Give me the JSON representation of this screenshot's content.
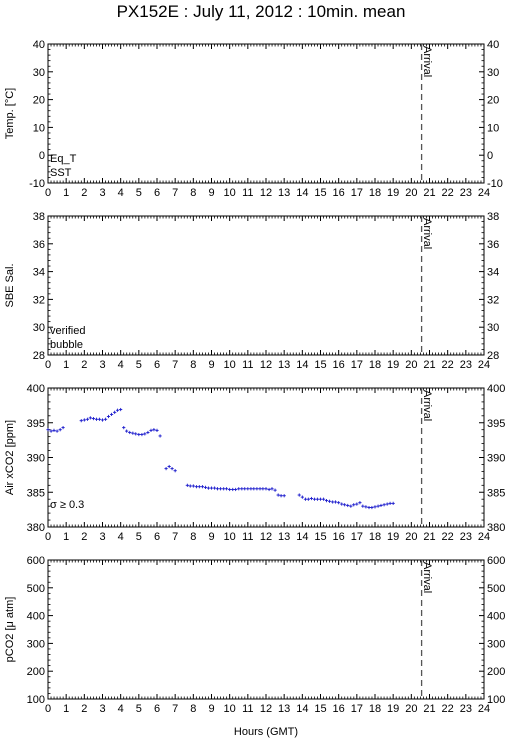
{
  "title": "PX152E : July 11, 2012 : 10min. mean",
  "xlabel": "Hours (GMT)",
  "arrival_label": "Arrival",
  "colors": {
    "axis": "#000000",
    "blue": "#1a1acc",
    "red": "#cc0000",
    "magenta": "#cc00cc",
    "arrival": "#555555"
  },
  "chart_data": [
    {
      "type": "scatter",
      "panel": "temperature",
      "ylabel": "Temp. [°C]",
      "xlim": [
        0,
        24
      ],
      "ylim": [
        -10,
        40
      ],
      "yticks": [
        -10,
        0,
        10,
        20,
        30,
        40
      ],
      "arrival_hour": 21,
      "legend": [
        {
          "label": "Eq_T",
          "color": "#cc0000"
        },
        {
          "label": "SST",
          "color": "#1a1acc"
        }
      ],
      "series": []
    },
    {
      "type": "scatter",
      "panel": "salinity",
      "ylabel": "SBE Sal.",
      "xlim": [
        0,
        24
      ],
      "ylim": [
        28,
        38
      ],
      "yticks": [
        28,
        30,
        32,
        34,
        36,
        38
      ],
      "arrival_hour": 21,
      "legend": [
        {
          "label": "verified",
          "color": "#1a1acc"
        },
        {
          "label": "bubble",
          "color": "#cc00cc"
        }
      ],
      "series": []
    },
    {
      "type": "scatter",
      "panel": "air_xco2",
      "ylabel": "Air xCO2 [ppm]",
      "xlim": [
        0,
        24
      ],
      "ylim": [
        380,
        400
      ],
      "yticks": [
        380,
        385,
        390,
        395,
        400
      ],
      "arrival_hour": 21,
      "annotation": "σ ≥ 0.3",
      "series": [
        {
          "points": [
            [
              0.0,
              394.0
            ],
            [
              0.17,
              393.8
            ],
            [
              0.33,
              393.9
            ],
            [
              0.5,
              393.8
            ],
            [
              0.67,
              394.0
            ],
            [
              0.83,
              394.3
            ],
            [
              1.83,
              395.3
            ],
            [
              2.0,
              395.4
            ],
            [
              2.17,
              395.5
            ],
            [
              2.33,
              395.7
            ],
            [
              2.5,
              395.6
            ],
            [
              2.67,
              395.5
            ],
            [
              2.83,
              395.5
            ],
            [
              3.0,
              395.4
            ],
            [
              3.17,
              395.5
            ],
            [
              3.33,
              395.9
            ],
            [
              3.5,
              396.2
            ],
            [
              3.67,
              396.5
            ],
            [
              3.83,
              396.8
            ],
            [
              4.0,
              396.9
            ],
            [
              4.17,
              394.3
            ],
            [
              4.33,
              393.8
            ],
            [
              4.5,
              393.6
            ],
            [
              4.67,
              393.5
            ],
            [
              4.83,
              393.4
            ],
            [
              5.0,
              393.3
            ],
            [
              5.17,
              393.3
            ],
            [
              5.33,
              393.4
            ],
            [
              5.5,
              393.6
            ],
            [
              5.67,
              393.9
            ],
            [
              5.83,
              394.0
            ],
            [
              6.0,
              393.9
            ],
            [
              6.17,
              393.1
            ],
            [
              6.5,
              388.4
            ],
            [
              6.67,
              388.7
            ],
            [
              6.83,
              388.4
            ],
            [
              7.0,
              388.1
            ],
            [
              7.67,
              386.0
            ],
            [
              7.83,
              385.9
            ],
            [
              8.0,
              385.9
            ],
            [
              8.17,
              385.8
            ],
            [
              8.33,
              385.8
            ],
            [
              8.5,
              385.8
            ],
            [
              8.67,
              385.7
            ],
            [
              8.83,
              385.6
            ],
            [
              9.0,
              385.6
            ],
            [
              9.17,
              385.6
            ],
            [
              9.33,
              385.5
            ],
            [
              9.5,
              385.5
            ],
            [
              9.67,
              385.5
            ],
            [
              9.83,
              385.5
            ],
            [
              10.0,
              385.4
            ],
            [
              10.17,
              385.4
            ],
            [
              10.33,
              385.4
            ],
            [
              10.5,
              385.5
            ],
            [
              10.67,
              385.5
            ],
            [
              10.83,
              385.5
            ],
            [
              11.0,
              385.5
            ],
            [
              11.17,
              385.5
            ],
            [
              11.33,
              385.5
            ],
            [
              11.5,
              385.5
            ],
            [
              11.67,
              385.5
            ],
            [
              11.83,
              385.5
            ],
            [
              12.0,
              385.5
            ],
            [
              12.17,
              385.4
            ],
            [
              12.33,
              385.5
            ],
            [
              12.5,
              385.3
            ],
            [
              12.67,
              384.6
            ],
            [
              12.83,
              384.5
            ],
            [
              13.0,
              384.5
            ],
            [
              13.83,
              384.6
            ],
            [
              14.0,
              384.3
            ],
            [
              14.17,
              384.0
            ],
            [
              14.33,
              384.0
            ],
            [
              14.5,
              384.1
            ],
            [
              14.67,
              384.0
            ],
            [
              14.83,
              384.0
            ],
            [
              15.0,
              384.0
            ],
            [
              15.17,
              384.0
            ],
            [
              15.33,
              383.8
            ],
            [
              15.5,
              383.7
            ],
            [
              15.67,
              383.6
            ],
            [
              15.83,
              383.6
            ],
            [
              16.0,
              383.5
            ],
            [
              16.17,
              383.3
            ],
            [
              16.33,
              383.2
            ],
            [
              16.5,
              383.1
            ],
            [
              16.67,
              383.0
            ],
            [
              16.83,
              383.2
            ],
            [
              17.0,
              383.3
            ],
            [
              17.17,
              383.5
            ],
            [
              17.33,
              383.0
            ],
            [
              17.5,
              382.9
            ],
            [
              17.67,
              382.8
            ],
            [
              17.83,
              382.8
            ],
            [
              18.0,
              382.9
            ],
            [
              18.17,
              383.0
            ],
            [
              18.33,
              383.1
            ],
            [
              18.5,
              383.2
            ],
            [
              18.67,
              383.3
            ],
            [
              18.83,
              383.4
            ],
            [
              19.0,
              383.4
            ]
          ]
        }
      ]
    },
    {
      "type": "scatter",
      "panel": "pco2",
      "ylabel": "pCO2 [μ atm]",
      "xlim": [
        0,
        24
      ],
      "ylim": [
        100,
        600
      ],
      "yticks": [
        100,
        200,
        300,
        400,
        500,
        600
      ],
      "arrival_hour": 21,
      "series": []
    }
  ]
}
